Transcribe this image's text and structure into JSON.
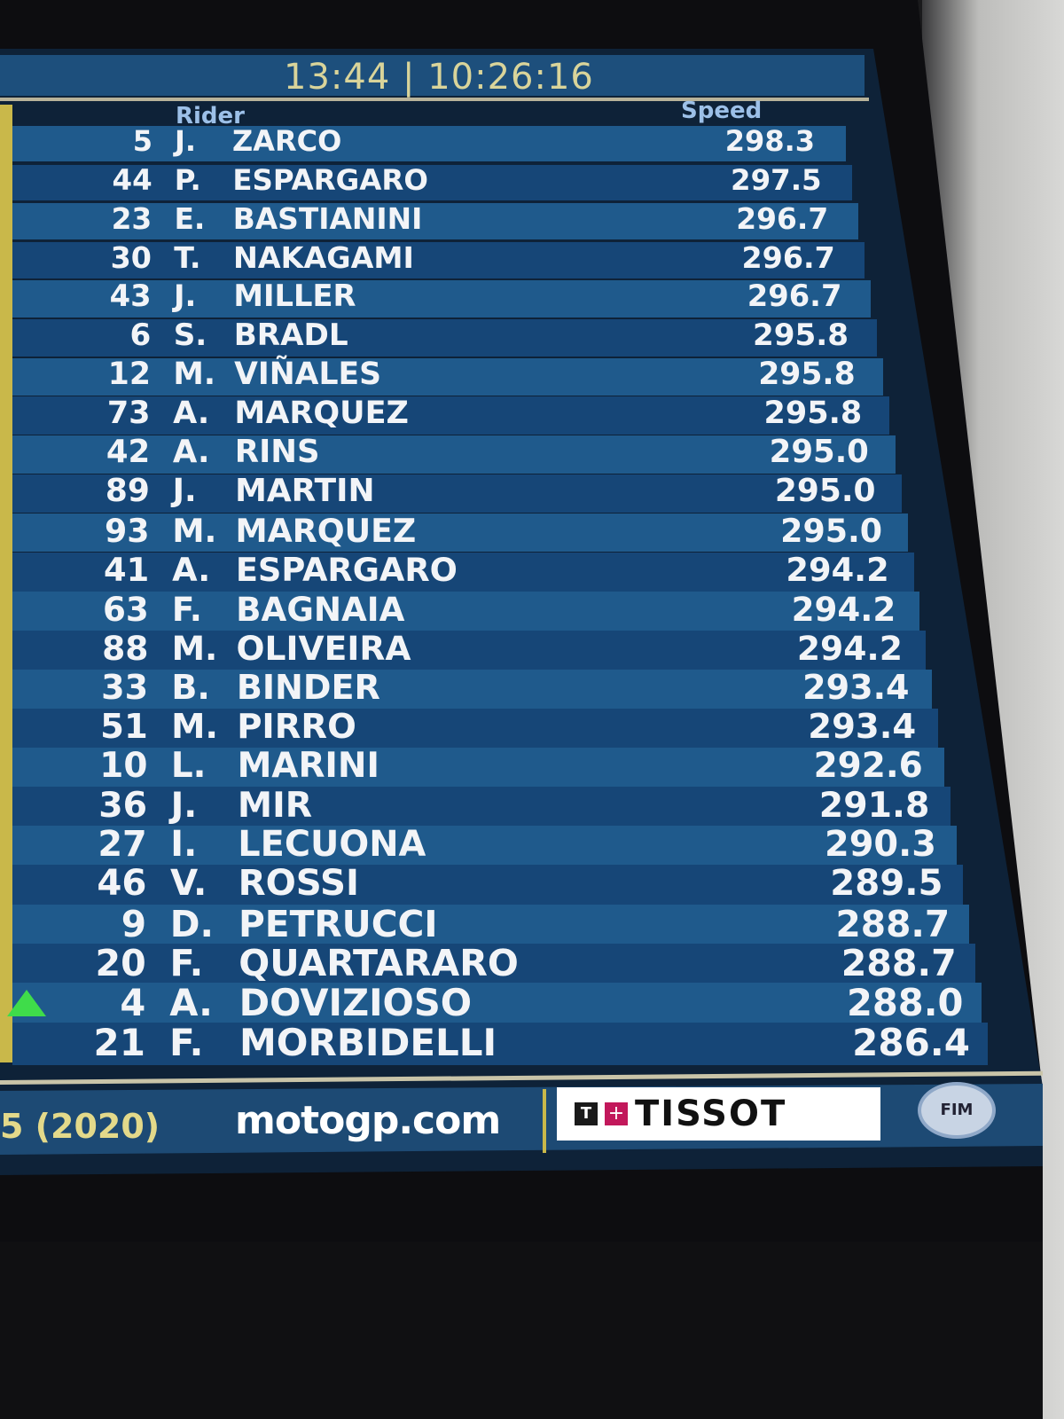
{
  "header": {
    "session_time": "13:44",
    "separator": "|",
    "clock": "10:26:16"
  },
  "columns": {
    "rider": "Rider",
    "speed": "Speed"
  },
  "rows": [
    {
      "number": "5",
      "initial": "J.",
      "surname": "ZARCO",
      "speed": "298.3"
    },
    {
      "number": "44",
      "initial": "P.",
      "surname": "ESPARGARO",
      "speed": "297.5"
    },
    {
      "number": "23",
      "initial": "E.",
      "surname": "BASTIANINI",
      "speed": "296.7"
    },
    {
      "number": "30",
      "initial": "T.",
      "surname": "NAKAGAMI",
      "speed": "296.7"
    },
    {
      "number": "43",
      "initial": "J.",
      "surname": "MILLER",
      "speed": "296.7"
    },
    {
      "number": "6",
      "initial": "S.",
      "surname": "BRADL",
      "speed": "295.8"
    },
    {
      "number": "12",
      "initial": "M.",
      "surname": "VIÑALES",
      "speed": "295.8"
    },
    {
      "number": "73",
      "initial": "A.",
      "surname": "MARQUEZ",
      "speed": "295.8"
    },
    {
      "number": "42",
      "initial": "A.",
      "surname": "RINS",
      "speed": "295.0"
    },
    {
      "number": "89",
      "initial": "J.",
      "surname": "MARTIN",
      "speed": "295.0"
    },
    {
      "number": "93",
      "initial": "M.",
      "surname": "MARQUEZ",
      "speed": "295.0"
    },
    {
      "number": "41",
      "initial": "A.",
      "surname": "ESPARGARO",
      "speed": "294.2"
    },
    {
      "number": "63",
      "initial": "F.",
      "surname": "BAGNAIA",
      "speed": "294.2"
    },
    {
      "number": "88",
      "initial": "M.",
      "surname": "OLIVEIRA",
      "speed": "294.2"
    },
    {
      "number": "33",
      "initial": "B.",
      "surname": "BINDER",
      "speed": "293.4"
    },
    {
      "number": "51",
      "initial": "M.",
      "surname": "PIRRO",
      "speed": "293.4"
    },
    {
      "number": "10",
      "initial": "L.",
      "surname": "MARINI",
      "speed": "292.6"
    },
    {
      "number": "36",
      "initial": "J.",
      "surname": "MIR",
      "speed": "291.8"
    },
    {
      "number": "27",
      "initial": "I.",
      "surname": "LECUONA",
      "speed": "290.3"
    },
    {
      "number": "46",
      "initial": "V.",
      "surname": "ROSSI",
      "speed": "289.5"
    },
    {
      "number": "9",
      "initial": "D.",
      "surname": "PETRUCCI",
      "speed": "288.7"
    },
    {
      "number": "20",
      "initial": "F.",
      "surname": "QUARTARARO",
      "speed": "288.7"
    },
    {
      "number": "4",
      "initial": "A.",
      "surname": "DOVIZIOSO",
      "speed": "288.0",
      "indicator": "up-arrow"
    },
    {
      "number": "21",
      "initial": "F.",
      "surname": "MORBIDELLI",
      "speed": "286.4"
    }
  ],
  "footer": {
    "year_text": "5 (2020)",
    "site": "motogp.com",
    "sponsor": "TISSOT",
    "sponsor_mark": "T",
    "federation_logo": "FIM"
  },
  "colors": {
    "row_light": "#1f5a8c",
    "row_dark": "#164677",
    "clock": "#d9d49a",
    "header_text": "#9cc0e8",
    "up_arrow": "#3fdc4a"
  }
}
